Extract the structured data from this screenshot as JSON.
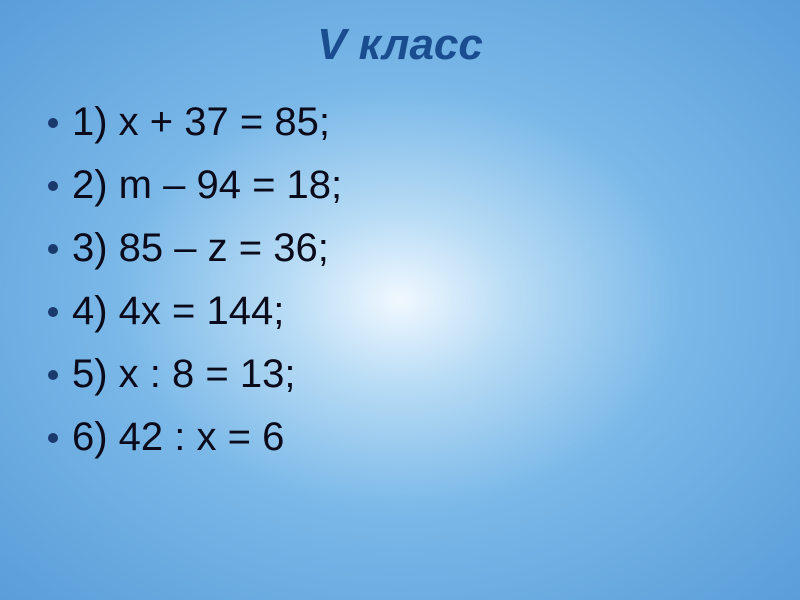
{
  "title": "V класс",
  "title_style": {
    "color": "#1a4d8f",
    "fontsize": 44,
    "italic": true,
    "bold": true
  },
  "background": {
    "type": "radial-gradient",
    "center_color": "#f0f8ff",
    "mid_color": "#7ab8e8",
    "outer_color": "#5a9dd8"
  },
  "bullet": {
    "color": "#1a3a6e",
    "size": 10
  },
  "equation_style": {
    "color": "#0a0a1a",
    "fontsize": 40
  },
  "equations": [
    "1) x + 37 = 85;",
    "2) m – 94 = 18;",
    "3) 85 – z = 36;",
    "4) 4x = 144;",
    "5) x : 8 = 13;",
    "6) 42 : x = 6"
  ]
}
